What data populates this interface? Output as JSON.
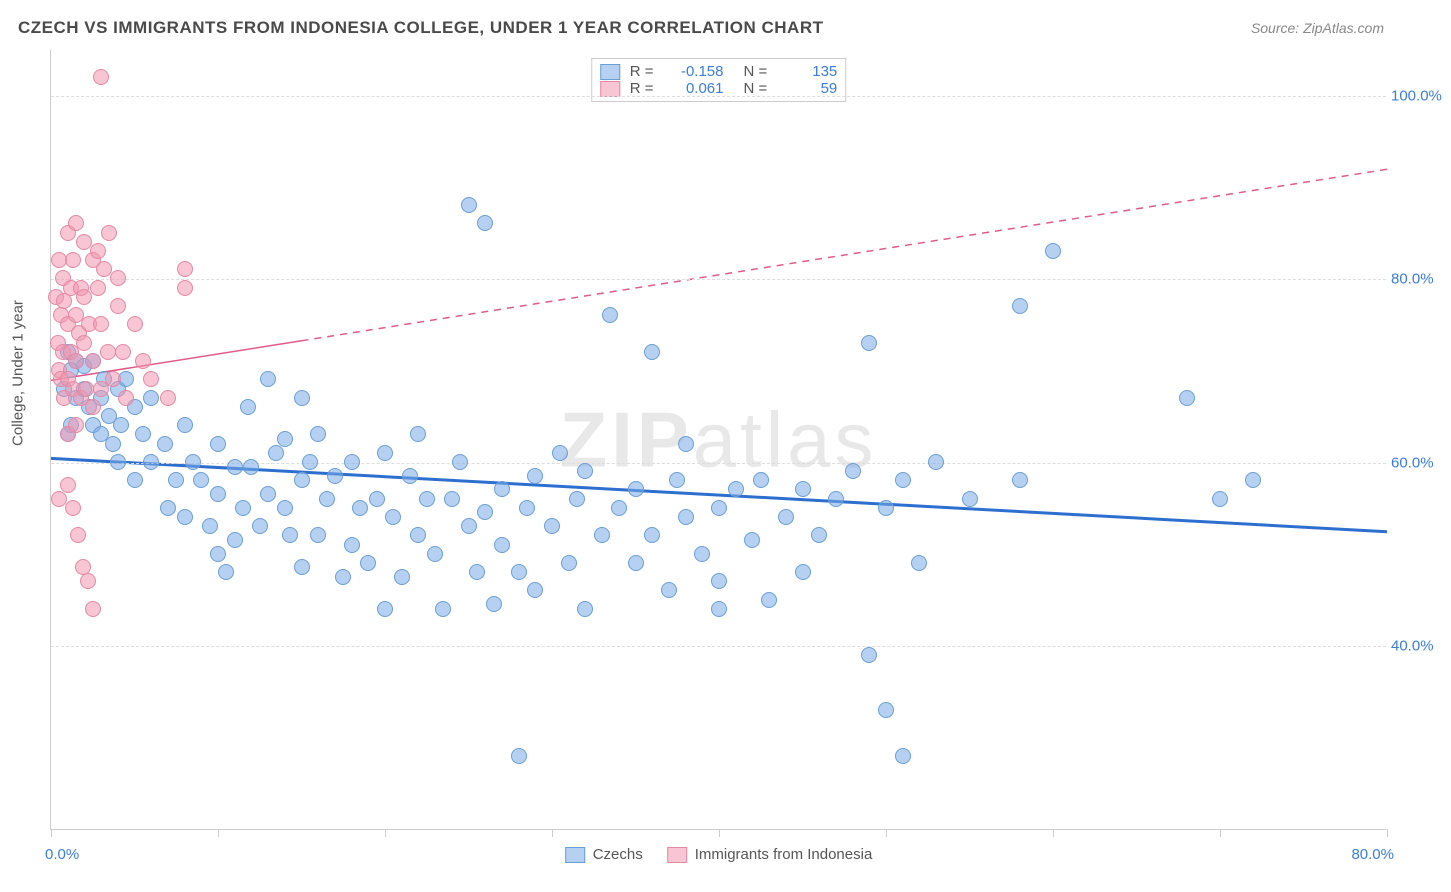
{
  "title": "CZECH VS IMMIGRANTS FROM INDONESIA COLLEGE, UNDER 1 YEAR CORRELATION CHART",
  "source": "Source: ZipAtlas.com",
  "watermark": "ZIPatlas",
  "axis_title_y": "College, Under 1 year",
  "chart": {
    "type": "scatter",
    "xlim": [
      0,
      80
    ],
    "ylim": [
      20,
      105
    ],
    "x_ticks": [
      0,
      10,
      20,
      30,
      40,
      50,
      60,
      70,
      80
    ],
    "y_ticks": [
      40,
      60,
      80,
      100
    ],
    "x_label_min": "0.0%",
    "x_label_max": "80.0%",
    "y_tick_labels": [
      "40.0%",
      "60.0%",
      "80.0%",
      "100.0%"
    ],
    "marker_radius": 8,
    "grid_color": "#dddddd",
    "background_color": "#ffffff",
    "series": [
      {
        "name": "Czechs",
        "color_fill": "rgba(120,170,230,0.55)",
        "color_stroke": "#6a9fd4",
        "trend_color": "#2d6fcf",
        "trend_width": 3,
        "trend_dash_split": 100,
        "R": "-0.158",
        "N": "135",
        "trend": {
          "x1": 0,
          "y1": 60.5,
          "x2": 80,
          "y2": 52.5
        },
        "points": [
          [
            1,
            72
          ],
          [
            1.2,
            70
          ],
          [
            1.5,
            71
          ],
          [
            1.5,
            67
          ],
          [
            1.2,
            64
          ],
          [
            0.8,
            68
          ],
          [
            1,
            63
          ],
          [
            2,
            68
          ],
          [
            2,
            70.5
          ],
          [
            2.3,
            66
          ],
          [
            2.5,
            71
          ],
          [
            2.5,
            64
          ],
          [
            3,
            67
          ],
          [
            3,
            63
          ],
          [
            3.2,
            69
          ],
          [
            3.5,
            65
          ],
          [
            3.7,
            62
          ],
          [
            4,
            68
          ],
          [
            4,
            60
          ],
          [
            4.2,
            64
          ],
          [
            4.5,
            69
          ],
          [
            5,
            66
          ],
          [
            5,
            58
          ],
          [
            5.5,
            63
          ],
          [
            6,
            60
          ],
          [
            6,
            67
          ],
          [
            6.8,
            62
          ],
          [
            7,
            55
          ],
          [
            7.5,
            58
          ],
          [
            8,
            64
          ],
          [
            8,
            54
          ],
          [
            8.5,
            60
          ],
          [
            9,
            58
          ],
          [
            9.5,
            53
          ],
          [
            10,
            62
          ],
          [
            10,
            56.5
          ],
          [
            10,
            50
          ],
          [
            10.5,
            48
          ],
          [
            11,
            59.5
          ],
          [
            11,
            51.5
          ],
          [
            11.5,
            55
          ],
          [
            11.8,
            66
          ],
          [
            12,
            59.5
          ],
          [
            12.5,
            53
          ],
          [
            13,
            56.5
          ],
          [
            13,
            69
          ],
          [
            13.5,
            61
          ],
          [
            14,
            55
          ],
          [
            14,
            62.5
          ],
          [
            14.3,
            52
          ],
          [
            15,
            67
          ],
          [
            15,
            58
          ],
          [
            15,
            48.5
          ],
          [
            15.5,
            60
          ],
          [
            16,
            52
          ],
          [
            16,
            63
          ],
          [
            16.5,
            56
          ],
          [
            17,
            58.5
          ],
          [
            17.5,
            47.5
          ],
          [
            18,
            60
          ],
          [
            18,
            51
          ],
          [
            18.5,
            55
          ],
          [
            19,
            49
          ],
          [
            19.5,
            56
          ],
          [
            20,
            61
          ],
          [
            20,
            44
          ],
          [
            20.5,
            54
          ],
          [
            21,
            47.5
          ],
          [
            21.5,
            58.5
          ],
          [
            22,
            52
          ],
          [
            22,
            63
          ],
          [
            22.5,
            56
          ],
          [
            23,
            50
          ],
          [
            23.5,
            44
          ],
          [
            24,
            56
          ],
          [
            24.5,
            60
          ],
          [
            25,
            53
          ],
          [
            25.5,
            48
          ],
          [
            25,
            88
          ],
          [
            26,
            86
          ],
          [
            26,
            54.5
          ],
          [
            26.5,
            44.5
          ],
          [
            27,
            57
          ],
          [
            27,
            51
          ],
          [
            28,
            48
          ],
          [
            28.5,
            55
          ],
          [
            29,
            58.5
          ],
          [
            29,
            46
          ],
          [
            30,
            53
          ],
          [
            30.5,
            61
          ],
          [
            31,
            49
          ],
          [
            31.5,
            56
          ],
          [
            32,
            44
          ],
          [
            32,
            59
          ],
          [
            33,
            52
          ],
          [
            33.5,
            76
          ],
          [
            34,
            55
          ],
          [
            35,
            57
          ],
          [
            35,
            49
          ],
          [
            36,
            72
          ],
          [
            36,
            52
          ],
          [
            37,
            46
          ],
          [
            37.5,
            58
          ],
          [
            38,
            54
          ],
          [
            38,
            62
          ],
          [
            39,
            50
          ],
          [
            40,
            47
          ],
          [
            40,
            55
          ],
          [
            40,
            44
          ],
          [
            41,
            57
          ],
          [
            42,
            51.5
          ],
          [
            42.5,
            58
          ],
          [
            43,
            45
          ],
          [
            44,
            54
          ],
          [
            45,
            57
          ],
          [
            45,
            48
          ],
          [
            46,
            52
          ],
          [
            47,
            56
          ],
          [
            48,
            59
          ],
          [
            49,
            73
          ],
          [
            49,
            39
          ],
          [
            50,
            55
          ],
          [
            50,
            33
          ],
          [
            51,
            58
          ],
          [
            51,
            28
          ],
          [
            52,
            49
          ],
          [
            53,
            60
          ],
          [
            28,
            28
          ],
          [
            55,
            56
          ],
          [
            58,
            77
          ],
          [
            58,
            58
          ],
          [
            60,
            83
          ],
          [
            68,
            67
          ],
          [
            70,
            56
          ],
          [
            72,
            58
          ]
        ]
      },
      {
        "name": "Immigrants from Indonesia",
        "color_fill": "rgba(240,150,175,0.55)",
        "color_stroke": "#e589a3",
        "trend_color": "#e05a8a",
        "trend_width": 1.5,
        "trend_dash_split": 15,
        "R": "0.061",
        "N": "59",
        "trend": {
          "x1": 0,
          "y1": 69,
          "x2": 80,
          "y2": 92
        },
        "points": [
          [
            0.3,
            78
          ],
          [
            0.4,
            73
          ],
          [
            0.5,
            82
          ],
          [
            0.5,
            70
          ],
          [
            0.6,
            76
          ],
          [
            0.6,
            69
          ],
          [
            0.7,
            80
          ],
          [
            0.7,
            72
          ],
          [
            0.8,
            67
          ],
          [
            0.8,
            77.5
          ],
          [
            1,
            85
          ],
          [
            1,
            75
          ],
          [
            1,
            69
          ],
          [
            1,
            63
          ],
          [
            1.2,
            79
          ],
          [
            1.2,
            72
          ],
          [
            1.3,
            82
          ],
          [
            1.3,
            68
          ],
          [
            1.5,
            86
          ],
          [
            1.5,
            76
          ],
          [
            1.5,
            71
          ],
          [
            1.5,
            64
          ],
          [
            1.7,
            74
          ],
          [
            1.8,
            79
          ],
          [
            1.8,
            67
          ],
          [
            2,
            84
          ],
          [
            2,
            78
          ],
          [
            2,
            73
          ],
          [
            2.1,
            68
          ],
          [
            2.3,
            75
          ],
          [
            2.5,
            82
          ],
          [
            2.5,
            71
          ],
          [
            2.5,
            66
          ],
          [
            2.8,
            79
          ],
          [
            2.8,
            83
          ],
          [
            3,
            75
          ],
          [
            3,
            68
          ],
          [
            3.2,
            81
          ],
          [
            3.4,
            72
          ],
          [
            3.5,
            85
          ],
          [
            3.7,
            69
          ],
          [
            4,
            77
          ],
          [
            4,
            80
          ],
          [
            4.3,
            72
          ],
          [
            4.5,
            67
          ],
          [
            5,
            75
          ],
          [
            5.5,
            71
          ],
          [
            6,
            69
          ],
          [
            7,
            67
          ],
          [
            8,
            79
          ],
          [
            8,
            81
          ],
          [
            1,
            57.5
          ],
          [
            1.3,
            55
          ],
          [
            1.6,
            52
          ],
          [
            1.9,
            48.5
          ],
          [
            2.2,
            47
          ],
          [
            0.5,
            56
          ],
          [
            2.5,
            44
          ],
          [
            3,
            102
          ]
        ]
      }
    ]
  }
}
